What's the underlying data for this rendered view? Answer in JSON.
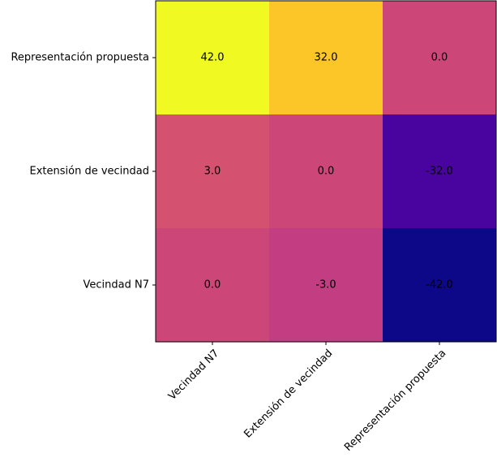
{
  "chart_data": {
    "type": "heatmap",
    "title": "",
    "xlabel": "",
    "ylabel": "",
    "colormap": "plasma",
    "vmin": -42,
    "vmax": 42,
    "x_categories": [
      "Vecindad N7",
      "Extensión de vecindad",
      "Representación propuesta"
    ],
    "y_categories": [
      "Representación propuesta",
      "Extensión de vecindad",
      "Vecindad N7"
    ],
    "values": [
      [
        42,
        32,
        0
      ],
      [
        3,
        0,
        -32
      ],
      [
        0,
        -3,
        -42
      ]
    ],
    "value_labels": [
      [
        "42.0",
        "32.0",
        "0.0"
      ],
      [
        "3.0",
        "0.0",
        "-32.0"
      ],
      [
        "0.0",
        "-3.0",
        "-42.0"
      ]
    ],
    "grid": false,
    "legend": "none"
  }
}
